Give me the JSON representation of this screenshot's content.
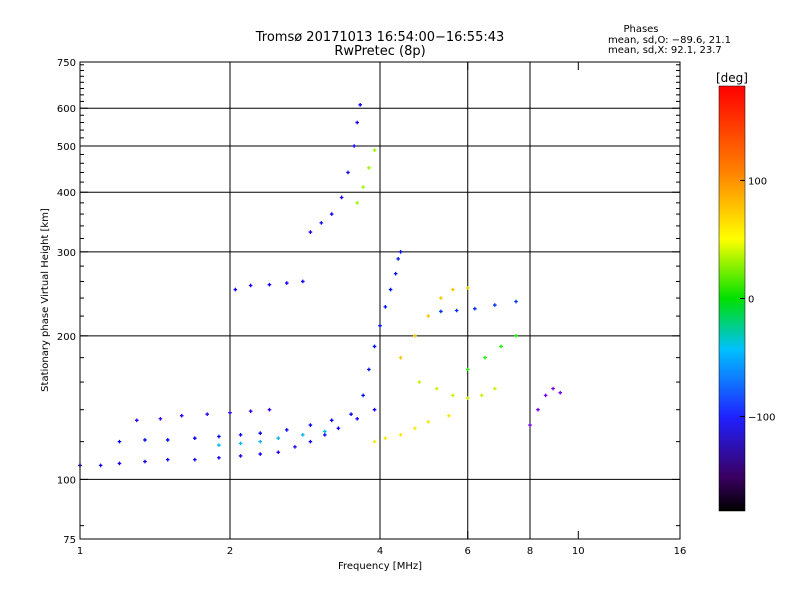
{
  "chart_data": {
    "type": "scatter",
    "title": "Tromsø 20171013 16:54:00−16:55:43",
    "subtitle": "RwPretec (8p)",
    "xlabel": "Frequency [MHz]",
    "ylabel": "Stationary phase Virtual Height [km]",
    "x_scale": "log",
    "y_scale": "log",
    "xlim": [
      1,
      16
    ],
    "ylim": [
      75,
      750
    ],
    "x_ticks": [
      1,
      2,
      4,
      6,
      8,
      10,
      16
    ],
    "x_gridlines": [
      2,
      4,
      6,
      8
    ],
    "y_ticks": [
      75,
      100,
      200,
      300,
      400,
      500,
      600,
      750
    ],
    "y_gridlines": [
      100,
      200,
      300,
      400,
      500,
      600
    ],
    "grid": true,
    "phases": {
      "heading": "Phases",
      "o_line": "mean, sd,O: −89.6, 21.1",
      "x_line": "mean, sd,X:  92.1, 23.7"
    },
    "colorbar": {
      "label": "[deg]",
      "range": [
        -180,
        180
      ],
      "ticks": [
        100,
        0,
        -100
      ],
      "tick_labels": [
        "100",
        "0",
        "−100"
      ]
    },
    "traces": [
      {
        "name": "lowest E/F1 trace",
        "color_deg": -120,
        "points": [
          [
            1.0,
            107
          ],
          [
            1.1,
            107
          ],
          [
            1.2,
            108
          ],
          [
            1.35,
            109
          ],
          [
            1.5,
            110
          ],
          [
            1.7,
            110
          ],
          [
            1.9,
            111
          ],
          [
            2.1,
            112
          ],
          [
            2.3,
            113
          ],
          [
            2.5,
            114
          ],
          [
            2.7,
            117
          ],
          [
            2.9,
            120
          ],
          [
            3.1,
            124
          ],
          [
            3.3,
            128
          ],
          [
            3.6,
            134
          ],
          [
            3.9,
            140
          ]
        ]
      },
      {
        "name": "second trace (blue)",
        "color_deg": -115,
        "points": [
          [
            1.2,
            120
          ],
          [
            1.35,
            121
          ],
          [
            1.5,
            121
          ],
          [
            1.7,
            122
          ],
          [
            1.9,
            123
          ],
          [
            2.1,
            124
          ],
          [
            2.3,
            125
          ],
          [
            2.6,
            127
          ],
          [
            2.9,
            130
          ],
          [
            3.2,
            133
          ],
          [
            3.5,
            137
          ]
        ]
      },
      {
        "name": "second trace (cyan)",
        "color_deg": -60,
        "points": [
          [
            1.9,
            118
          ],
          [
            2.1,
            119
          ],
          [
            2.3,
            120
          ],
          [
            2.5,
            122
          ],
          [
            2.8,
            124
          ],
          [
            3.1,
            126
          ]
        ]
      },
      {
        "name": "upper low-frequency trace",
        "color_deg": -130,
        "points": [
          [
            1.3,
            133
          ],
          [
            1.45,
            134
          ],
          [
            1.6,
            136
          ],
          [
            1.8,
            137
          ],
          [
            2.0,
            138
          ],
          [
            2.2,
            139
          ],
          [
            2.4,
            140
          ]
        ]
      },
      {
        "name": "F-layer trace near 250 km",
        "color_deg": -120,
        "points": [
          [
            2.05,
            250
          ],
          [
            2.2,
            255
          ],
          [
            2.4,
            256
          ],
          [
            2.6,
            258
          ],
          [
            2.8,
            260
          ]
        ]
      },
      {
        "name": "steep echo 3-3.6 MHz",
        "color_deg": -120,
        "points": [
          [
            2.9,
            330
          ],
          [
            3.05,
            345
          ],
          [
            3.2,
            360
          ],
          [
            3.35,
            390
          ],
          [
            3.45,
            440
          ],
          [
            3.55,
            500
          ],
          [
            3.6,
            560
          ],
          [
            3.65,
            610
          ]
        ]
      },
      {
        "name": "X-mode echo near 3.9 MHz",
        "color_deg": 80,
        "points": [
          [
            3.6,
            380
          ],
          [
            3.7,
            410
          ],
          [
            3.8,
            450
          ],
          [
            3.9,
            490
          ]
        ]
      },
      {
        "name": "spread F 3.7-4.3 MHz",
        "color_deg": -110,
        "points": [
          [
            3.7,
            150
          ],
          [
            3.8,
            170
          ],
          [
            3.9,
            190
          ],
          [
            4.0,
            210
          ],
          [
            4.1,
            230
          ],
          [
            4.2,
            250
          ],
          [
            4.3,
            270
          ],
          [
            4.35,
            290
          ],
          [
            4.4,
            300
          ]
        ]
      },
      {
        "name": "orange trace",
        "color_deg": 110,
        "points": [
          [
            3.9,
            120
          ],
          [
            4.1,
            122
          ],
          [
            4.4,
            124
          ],
          [
            4.7,
            128
          ],
          [
            5.0,
            132
          ],
          [
            5.5,
            136
          ]
        ]
      },
      {
        "name": "orange F2 trace",
        "color_deg": 120,
        "points": [
          [
            4.4,
            180
          ],
          [
            4.7,
            200
          ],
          [
            5.0,
            220
          ],
          [
            5.3,
            240
          ],
          [
            5.6,
            250
          ],
          [
            6.0,
            252
          ]
        ]
      },
      {
        "name": "yellow cluster",
        "color_deg": 90,
        "points": [
          [
            4.8,
            160
          ],
          [
            5.2,
            155
          ],
          [
            5.6,
            150
          ],
          [
            6.0,
            148
          ],
          [
            6.4,
            150
          ],
          [
            6.8,
            155
          ]
        ]
      },
      {
        "name": "blue trace 5-8 MHz",
        "color_deg": -100,
        "points": [
          [
            5.3,
            225
          ],
          [
            5.7,
            226
          ],
          [
            6.2,
            228
          ],
          [
            6.8,
            232
          ],
          [
            7.5,
            236
          ]
        ]
      },
      {
        "name": "green trace",
        "color_deg": 40,
        "points": [
          [
            6.0,
            170
          ],
          [
            6.5,
            180
          ],
          [
            7.0,
            190
          ],
          [
            7.5,
            200
          ]
        ]
      },
      {
        "name": "dark trace near 9 MHz",
        "color_deg": -150,
        "points": [
          [
            8.0,
            130
          ],
          [
            8.3,
            140
          ],
          [
            8.6,
            150
          ],
          [
            8.9,
            155
          ],
          [
            9.2,
            152
          ]
        ]
      }
    ]
  }
}
